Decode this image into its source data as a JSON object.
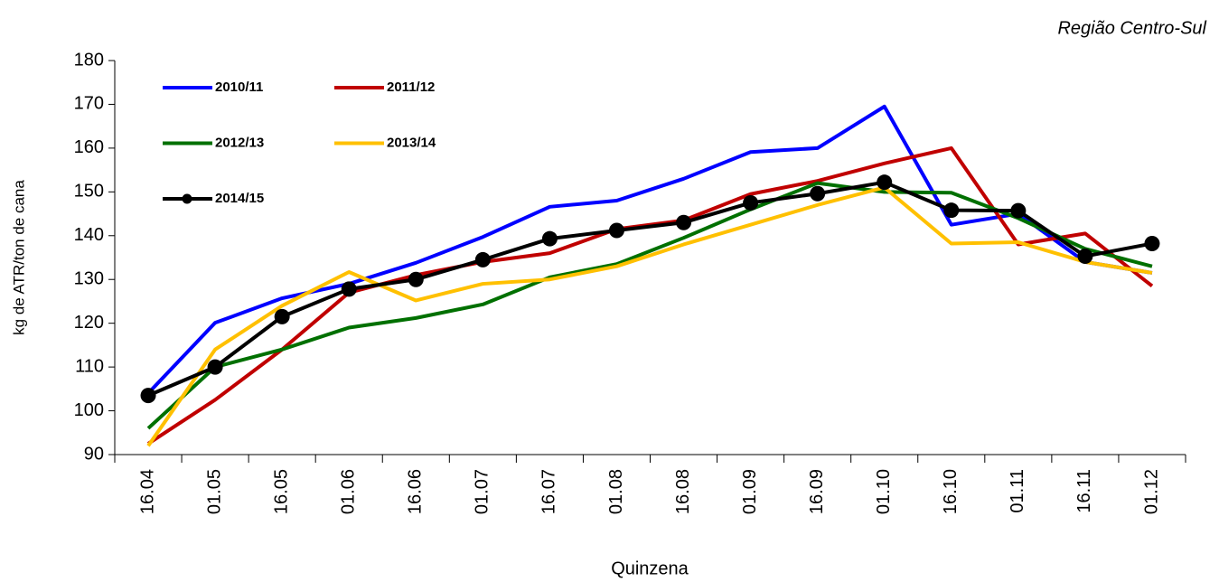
{
  "chart_data": {
    "type": "line",
    "annotation": "Região Centro-Sul",
    "x_label": "Quinzena",
    "y_label": "kg de ATR/ton de cana",
    "categories": [
      "16.04",
      "01.05",
      "16.05",
      "01.06",
      "16.06",
      "01.07",
      "16.07",
      "01.08",
      "16.08",
      "01.09",
      "16.09",
      "01.10",
      "16.10",
      "01.11",
      "16.11",
      "01.12"
    ],
    "series": [
      {
        "name": "2010/11",
        "color": "#0000ff",
        "values": [
          104,
          120.1,
          125.7,
          129,
          133.8,
          139.7,
          146.6,
          148,
          153,
          159.1,
          160,
          169.5,
          142.5,
          145,
          134,
          131.5
        ]
      },
      {
        "name": "2011/12",
        "color": "#c00000",
        "values": [
          92.5,
          102.5,
          114,
          127,
          131,
          134,
          136,
          141.5,
          143.5,
          149.5,
          152.5,
          156.5,
          160,
          138,
          140.5,
          128.5
        ]
      },
      {
        "name": "2012/13",
        "color": "#007000",
        "values": [
          96,
          110,
          114,
          119,
          121.2,
          124.3,
          130.5,
          133.5,
          139.5,
          146,
          152,
          150,
          149.8,
          144,
          137,
          133
        ]
      },
      {
        "name": "2013/14",
        "color": "#ffc000",
        "values": [
          92,
          114,
          124,
          131.7,
          125.2,
          129,
          130,
          133,
          138,
          142.5,
          147,
          151,
          138.2,
          138.5,
          134,
          131.5
        ]
      },
      {
        "name": "2014/15",
        "color": "#000000",
        "markers": true,
        "values": [
          103.5,
          110,
          121.5,
          127.8,
          130,
          134.5,
          139.3,
          141.2,
          143,
          147.5,
          149.6,
          152.2,
          145.8,
          145.7,
          135.3,
          138.2
        ]
      }
    ],
    "ylim": [
      90,
      180
    ],
    "yticks": [
      90,
      100,
      110,
      120,
      130,
      140,
      150,
      160,
      170,
      180
    ],
    "legend": "upper left",
    "grid": false
  }
}
